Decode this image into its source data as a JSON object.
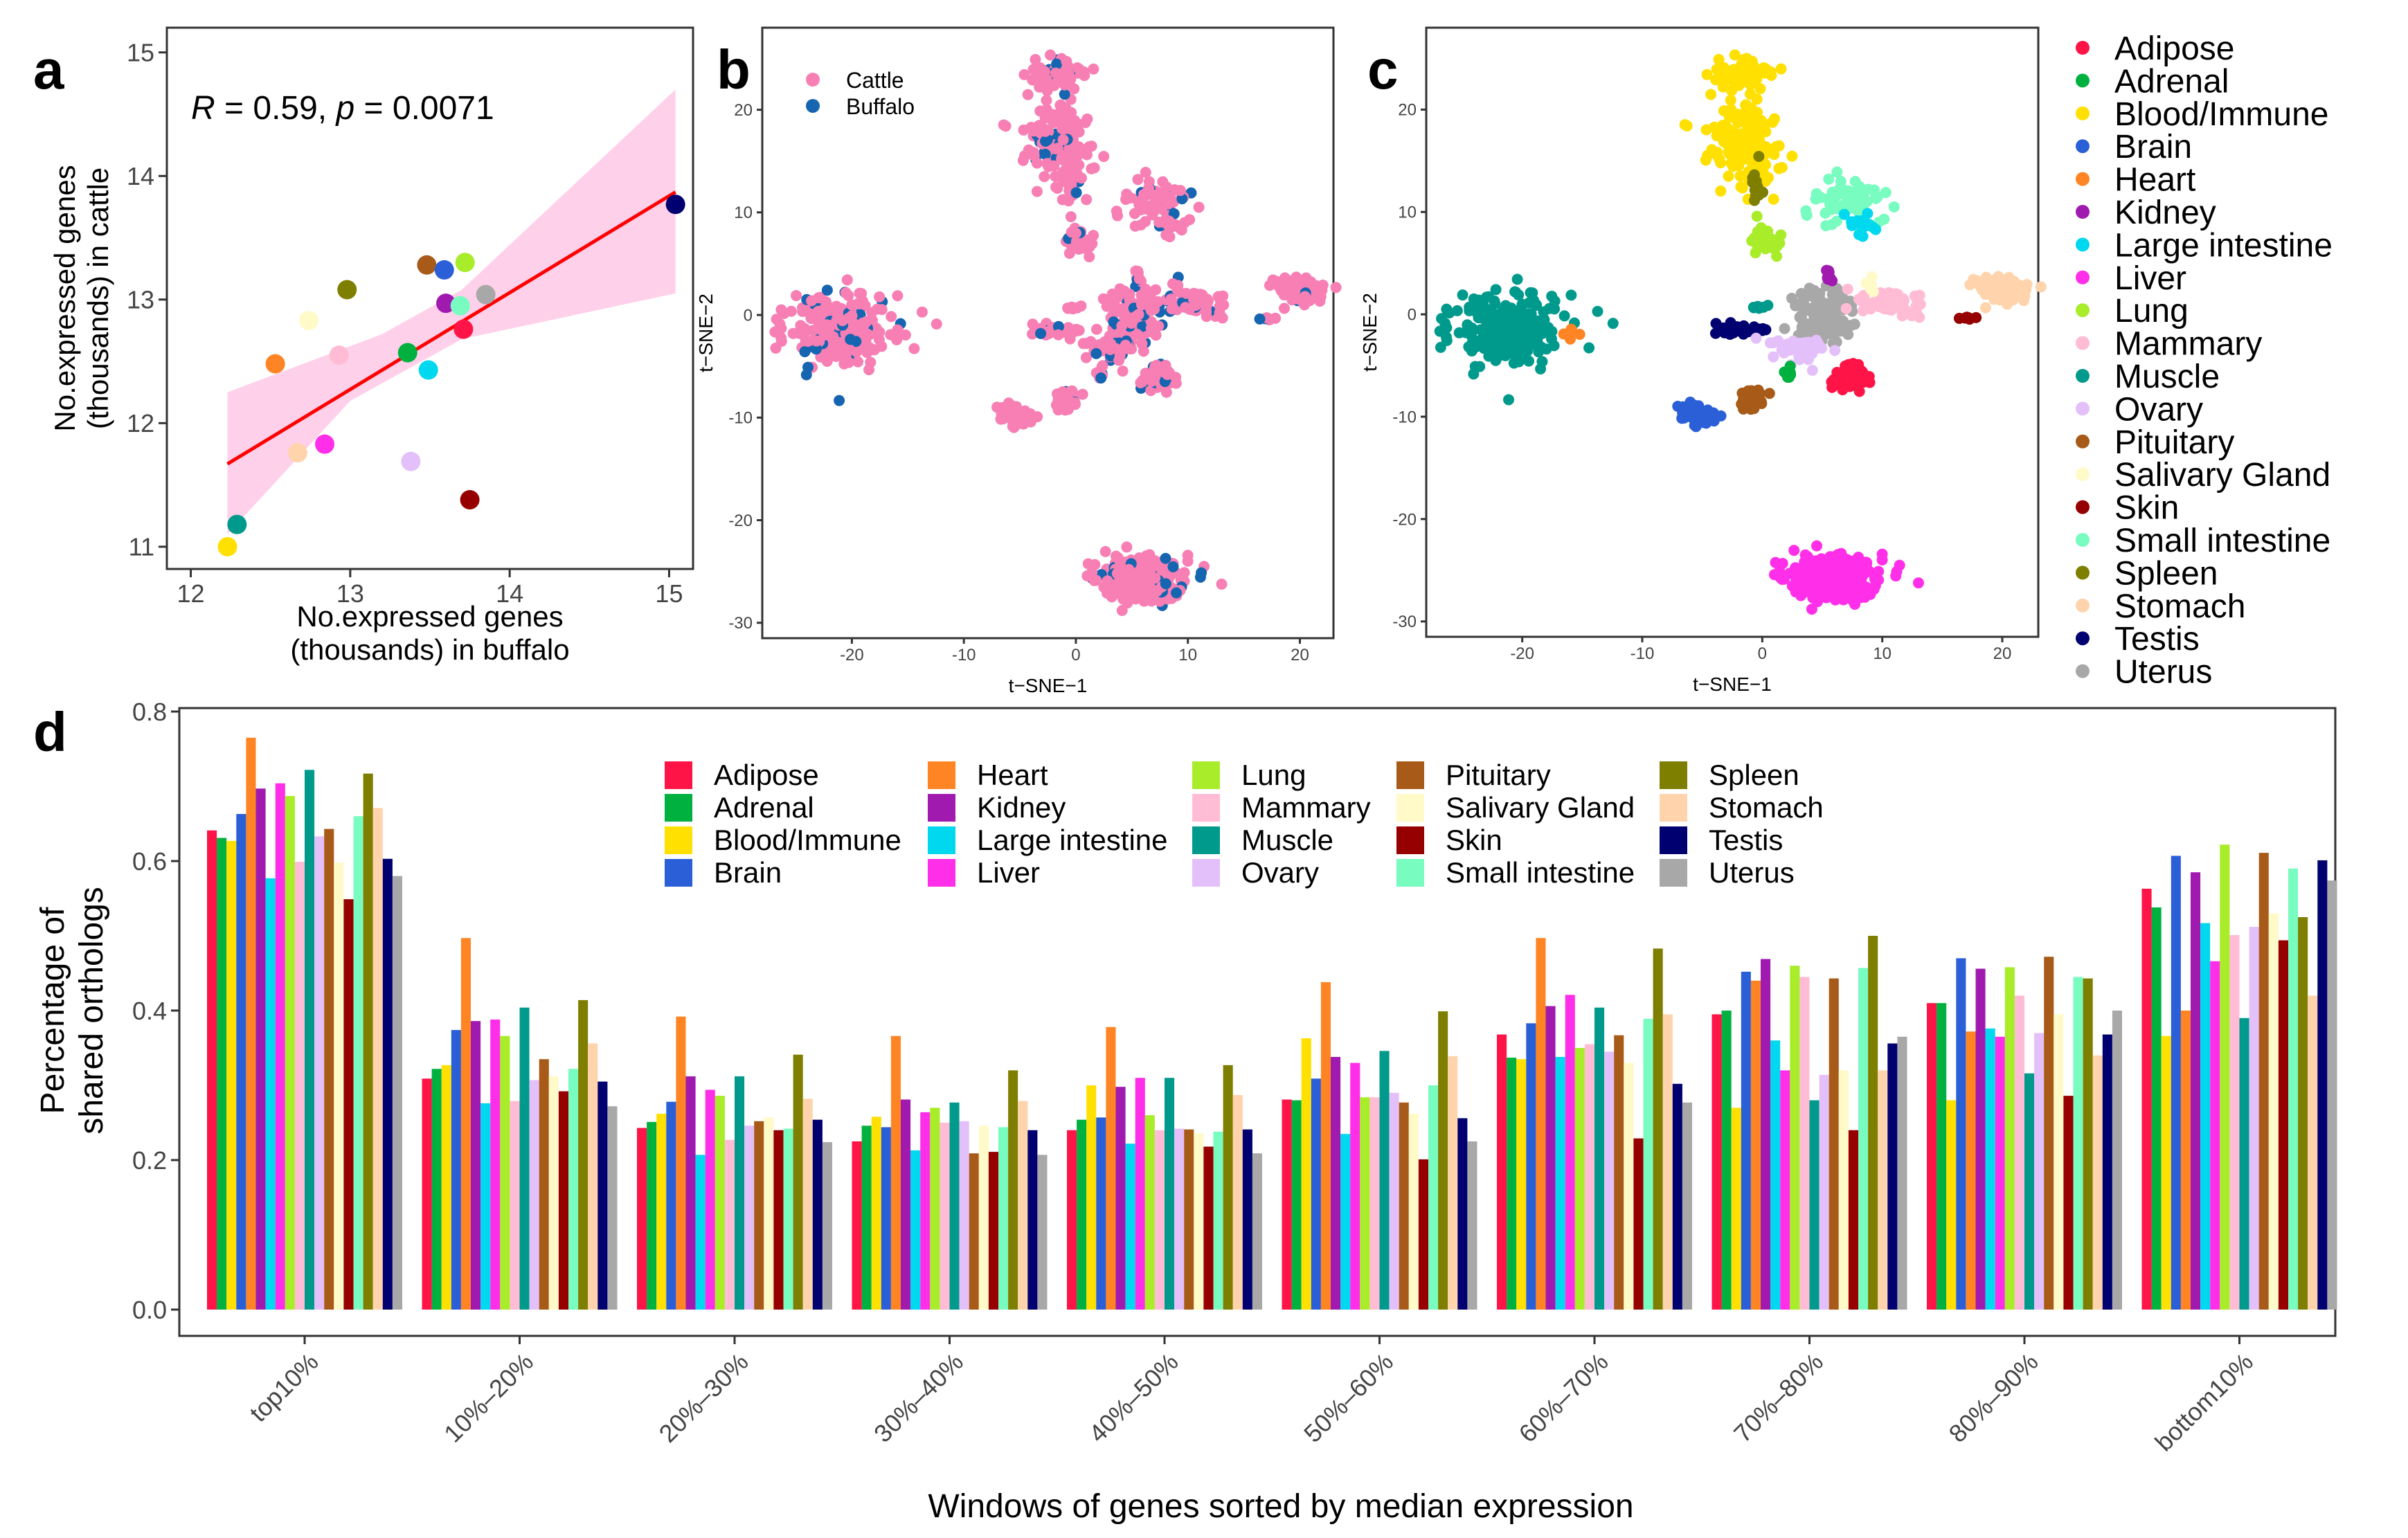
{
  "panel_labels": [
    "a",
    "b",
    "c",
    "d"
  ],
  "tissue_colors": {
    "Adipose": "#FF1447",
    "Adrenal": "#00B140",
    "Blood/Immune": "#FFE000",
    "Brain": "#2A5FD8",
    "Heart": "#FF8424",
    "Kidney": "#A01AB0",
    "Large intestine": "#00D8F0",
    "Liver": "#FF2EE8",
    "Lung": "#A8EC2A",
    "Mammary": "#FFBCD4",
    "Muscle": "#009A8C",
    "Ovary": "#E4C0FA",
    "Pituitary": "#A85A18",
    "Salivary Gland": "#FFFAC8",
    "Skin": "#960000",
    "Small intestine": "#78FCC0",
    "Spleen": "#7E7E00",
    "Stomach": "#FFD4AC",
    "Testis": "#000070",
    "Uterus": "#A8A8A8"
  },
  "chart_data": [
    {
      "panel": "a",
      "type": "scatter",
      "xlabel": [
        "No.expressed genes",
        "(thousands) in buffalo"
      ],
      "ylabel": [
        "No.expressed genes",
        "(thousands) in cattle"
      ],
      "annotation": {
        "r_label": "R",
        "r_text": " = 0.59, ",
        "p_label": "p",
        "p_text": " = 0.0071"
      },
      "xlim": [
        11.85,
        15.15
      ],
      "ylim": [
        10.82,
        15.2
      ],
      "xticks": [
        12,
        13,
        14,
        15
      ],
      "yticks": [
        11,
        12,
        13,
        14,
        15
      ],
      "fit": {
        "color": "#FF0000",
        "band_color": "#FFC8E6",
        "x": [
          12.23,
          15.04
        ],
        "y": [
          11.67,
          13.87
        ],
        "band_upper": [
          12.25,
          14.7
        ],
        "band_lower": [
          11.1,
          13.05
        ]
      },
      "points": [
        {
          "tissue": "Testis",
          "x": 15.04,
          "y": 13.77
        },
        {
          "tissue": "Lung",
          "x": 13.72,
          "y": 13.3
        },
        {
          "tissue": "Pituitary",
          "x": 13.48,
          "y": 13.28
        },
        {
          "tissue": "Brain",
          "x": 13.59,
          "y": 13.24
        },
        {
          "tissue": "Spleen",
          "x": 12.98,
          "y": 13.08
        },
        {
          "tissue": "Uterus",
          "x": 13.85,
          "y": 13.04
        },
        {
          "tissue": "Kidney",
          "x": 13.6,
          "y": 12.97
        },
        {
          "tissue": "Small intestine",
          "x": 13.69,
          "y": 12.95
        },
        {
          "tissue": "Salivary Gland",
          "x": 12.74,
          "y": 12.83
        },
        {
          "tissue": "Adipose",
          "x": 13.71,
          "y": 12.76
        },
        {
          "tissue": "Mammary",
          "x": 12.93,
          "y": 12.55
        },
        {
          "tissue": "Adrenal",
          "x": 13.36,
          "y": 12.57
        },
        {
          "tissue": "Heart",
          "x": 12.53,
          "y": 12.48
        },
        {
          "tissue": "Large intestine",
          "x": 13.49,
          "y": 12.43
        },
        {
          "tissue": "Liver",
          "x": 12.84,
          "y": 11.83
        },
        {
          "tissue": "Stomach",
          "x": 12.67,
          "y": 11.76
        },
        {
          "tissue": "Ovary",
          "x": 13.38,
          "y": 11.69
        },
        {
          "tissue": "Skin",
          "x": 13.75,
          "y": 11.38
        },
        {
          "tissue": "Muscle",
          "x": 12.29,
          "y": 11.18
        },
        {
          "tissue": "Blood/Immune",
          "x": 12.23,
          "y": 11.0
        }
      ]
    },
    {
      "panel": "b",
      "type": "scatter",
      "xlabel": "t−SNE−1",
      "ylabel": "t−SNE−2",
      "xlim": [
        -28,
        23
      ],
      "ylim": [
        -31.5,
        28
      ],
      "xticks": [
        -20,
        -10,
        0,
        10,
        20
      ],
      "yticks": [
        -30,
        -20,
        -10,
        0,
        10,
        20
      ],
      "legend": [
        {
          "name": "Cattle",
          "color": "#F77FB4"
        },
        {
          "name": "Buffalo",
          "color": "#1565B0"
        }
      ],
      "legend_position": "top-left",
      "buffalo_fraction": 0.12
    },
    {
      "panel": "c",
      "type": "scatter",
      "xlabel": "t−SNE−1",
      "ylabel": "t−SNE−2",
      "xlim": [
        -28,
        23
      ],
      "ylim": [
        -31.5,
        28
      ],
      "xticks": [
        -20,
        -10,
        0,
        10,
        20
      ],
      "yticks": [
        -30,
        -20,
        -10,
        0,
        10,
        20
      ],
      "legend_position": "right",
      "clusters": [
        {
          "tissue": "Muscle",
          "cx": -21,
          "cy": -1.5,
          "sx": 2.2,
          "sy": 1.6,
          "n": 260
        },
        {
          "tissue": "Heart",
          "cx": -16,
          "cy": -1.9,
          "sx": 0.25,
          "sy": 0.3,
          "n": 8
        },
        {
          "tissue": "Blood/Immune",
          "cx": -1.5,
          "cy": 16.5,
          "sx": 1.5,
          "sy": 2.2,
          "n": 150
        },
        {
          "tissue": "Blood/Immune",
          "cx": -1.2,
          "cy": 23.5,
          "sx": 1.3,
          "sy": 0.8,
          "n": 60
        },
        {
          "tissue": "Spleen",
          "cx": -0.5,
          "cy": 12.5,
          "sx": 0.25,
          "sy": 0.9,
          "n": 12
        },
        {
          "tissue": "Lung",
          "cx": 0.4,
          "cy": 7.5,
          "sx": 0.6,
          "sy": 0.8,
          "n": 25
        },
        {
          "tissue": "Small intestine",
          "cx": 7,
          "cy": 11,
          "sx": 1.6,
          "sy": 1,
          "n": 70
        },
        {
          "tissue": "Large intestine",
          "cx": 8.5,
          "cy": 8.8,
          "sx": 0.8,
          "sy": 0.5,
          "n": 20
        },
        {
          "tissue": "Uterus",
          "cx": 5,
          "cy": 0,
          "sx": 1.2,
          "sy": 1.3,
          "n": 120
        },
        {
          "tissue": "Kidney",
          "cx": 5.5,
          "cy": 4,
          "sx": 0.2,
          "sy": 0.6,
          "n": 10
        },
        {
          "tissue": "Mammary",
          "cx": 10.5,
          "cy": 1,
          "sx": 1.7,
          "sy": 0.6,
          "n": 60
        },
        {
          "tissue": "Stomach",
          "cx": 20,
          "cy": 2.4,
          "sx": 1.2,
          "sy": 0.6,
          "n": 60
        },
        {
          "tissue": "Skin",
          "cx": 17,
          "cy": -0.3,
          "sx": 0.3,
          "sy": 0.15,
          "n": 6
        },
        {
          "tissue": "Testis",
          "cx": -1.5,
          "cy": -1.4,
          "sx": 1.1,
          "sy": 0.3,
          "n": 25
        },
        {
          "tissue": "Muscle",
          "cx": -0.3,
          "cy": 0.7,
          "sx": 0.4,
          "sy": 0.15,
          "n": 6
        },
        {
          "tissue": "Ovary",
          "cx": 3,
          "cy": -3.5,
          "sx": 1.2,
          "sy": 0.8,
          "n": 40
        },
        {
          "tissue": "Adrenal",
          "cx": 2.2,
          "cy": -5.6,
          "sx": 0.2,
          "sy": 0.3,
          "n": 8
        },
        {
          "tissue": "Adipose",
          "cx": 7.5,
          "cy": -6.2,
          "sx": 0.8,
          "sy": 0.6,
          "n": 60
        },
        {
          "tissue": "Pituitary",
          "cx": -0.8,
          "cy": -8.3,
          "sx": 0.6,
          "sy": 0.6,
          "n": 30
        },
        {
          "tissue": "Brain",
          "cx": -5.3,
          "cy": -10,
          "sx": 0.7,
          "sy": 0.6,
          "n": 40
        },
        {
          "tissue": "Liver",
          "cx": 5.8,
          "cy": -25.5,
          "sx": 2,
          "sy": 1.1,
          "n": 260
        },
        {
          "tissue": "Salivary Gland",
          "cx": 9,
          "cy": 3,
          "sx": 0.3,
          "sy": 0.3,
          "n": 5
        }
      ]
    },
    {
      "panel": "d",
      "type": "bar",
      "xlabel": "Windows of genes sorted by median expression",
      "ylabel": [
        "Percentage of",
        "shared orthologs"
      ],
      "ylim": [
        0,
        0.8
      ],
      "yticks": [
        "0.0",
        "0.2",
        "0.4",
        "0.6",
        "0.8"
      ],
      "legend_position": "top-center",
      "categories": [
        "top10%",
        "10%–20%",
        "20%–30%",
        "30%–40%",
        "40%–50%",
        "50%–60%",
        "60%–70%",
        "70%–80%",
        "80%–90%",
        "bottom10%"
      ],
      "series": [
        {
          "name": "Adipose",
          "values": [
            0.641,
            0.309,
            0.243,
            0.225,
            0.24,
            0.281,
            0.368,
            0.395,
            0.41,
            0.563
          ]
        },
        {
          "name": "Adrenal",
          "values": [
            0.631,
            0.322,
            0.251,
            0.246,
            0.254,
            0.28,
            0.337,
            0.4,
            0.41,
            0.538
          ]
        },
        {
          "name": "Blood/Immune",
          "values": [
            0.627,
            0.327,
            0.262,
            0.258,
            0.3,
            0.363,
            0.335,
            0.27,
            0.28,
            0.366
          ]
        },
        {
          "name": "Brain",
          "values": [
            0.663,
            0.374,
            0.278,
            0.244,
            0.257,
            0.309,
            0.383,
            0.452,
            0.47,
            0.607
          ]
        },
        {
          "name": "Heart",
          "values": [
            0.765,
            0.497,
            0.392,
            0.366,
            0.378,
            0.438,
            0.497,
            0.44,
            0.372,
            0.4
          ]
        },
        {
          "name": "Kidney",
          "values": [
            0.697,
            0.386,
            0.312,
            0.281,
            0.298,
            0.338,
            0.406,
            0.469,
            0.456,
            0.585
          ]
        },
        {
          "name": "Large intestine",
          "values": [
            0.577,
            0.276,
            0.207,
            0.213,
            0.222,
            0.235,
            0.338,
            0.36,
            0.376,
            0.517
          ]
        },
        {
          "name": "Liver",
          "values": [
            0.704,
            0.388,
            0.294,
            0.264,
            0.31,
            0.33,
            0.421,
            0.32,
            0.365,
            0.466
          ]
        },
        {
          "name": "Lung",
          "values": [
            0.687,
            0.366,
            0.286,
            0.27,
            0.26,
            0.284,
            0.35,
            0.46,
            0.458,
            0.622
          ]
        },
        {
          "name": "Mammary",
          "values": [
            0.599,
            0.279,
            0.227,
            0.25,
            0.24,
            0.284,
            0.355,
            0.445,
            0.42,
            0.501
          ]
        },
        {
          "name": "Muscle",
          "values": [
            0.722,
            0.404,
            0.312,
            0.277,
            0.31,
            0.346,
            0.404,
            0.28,
            0.316,
            0.39
          ]
        },
        {
          "name": "Ovary",
          "values": [
            0.633,
            0.307,
            0.246,
            0.252,
            0.242,
            0.29,
            0.345,
            0.314,
            0.37,
            0.512
          ]
        },
        {
          "name": "Pituitary",
          "values": [
            0.643,
            0.335,
            0.252,
            0.209,
            0.241,
            0.277,
            0.367,
            0.443,
            0.472,
            0.611
          ]
        },
        {
          "name": "Salivary Gland",
          "values": [
            0.598,
            0.312,
            0.257,
            0.246,
            0.236,
            0.262,
            0.33,
            0.32,
            0.395,
            0.53
          ]
        },
        {
          "name": "Skin",
          "values": [
            0.549,
            0.292,
            0.24,
            0.211,
            0.218,
            0.201,
            0.229,
            0.24,
            0.286,
            0.494
          ]
        },
        {
          "name": "Small intestine",
          "values": [
            0.66,
            0.322,
            0.242,
            0.244,
            0.238,
            0.3,
            0.389,
            0.457,
            0.445,
            0.59
          ]
        },
        {
          "name": "Spleen",
          "values": [
            0.717,
            0.414,
            0.341,
            0.32,
            0.327,
            0.399,
            0.483,
            0.5,
            0.443,
            0.525
          ]
        },
        {
          "name": "Stomach",
          "values": [
            0.671,
            0.356,
            0.282,
            0.279,
            0.287,
            0.339,
            0.395,
            0.32,
            0.34,
            0.42
          ]
        },
        {
          "name": "Testis",
          "values": [
            0.603,
            0.305,
            0.254,
            0.24,
            0.241,
            0.256,
            0.302,
            0.356,
            0.368,
            0.601
          ]
        },
        {
          "name": "Uterus",
          "values": [
            0.58,
            0.272,
            0.224,
            0.207,
            0.209,
            0.225,
            0.277,
            0.365,
            0.4,
            0.574
          ]
        }
      ]
    }
  ]
}
